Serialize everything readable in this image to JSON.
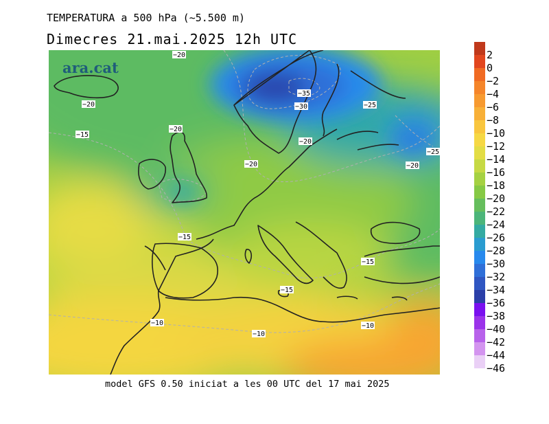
{
  "title": "TEMPERATURA a 500 hPa (~5.500 m)",
  "subtitle": "Dimecres  21.mai.2025 12h UTC",
  "brand": "ara.cat",
  "footer": "model GFS 0.50 iniciat a les 00 UTC del 17 mai 2025",
  "legend": {
    "labels": [
      "2",
      "0",
      "−2",
      "−4",
      "−6",
      "−8",
      "−10",
      "−12",
      "−14",
      "−16",
      "−18",
      "−20",
      "−22",
      "−24",
      "−26",
      "−28",
      "−30",
      "−32",
      "−34",
      "−36",
      "−38",
      "−40",
      "−42",
      "−44",
      "−46"
    ],
    "colors": [
      "#c0391b",
      "#e2461e",
      "#f06a22",
      "#f5852a",
      "#f79a30",
      "#f8b038",
      "#f9c63e",
      "#f6d844",
      "#e3dd45",
      "#c6d944",
      "#a5d142",
      "#86c945",
      "#66be5d",
      "#4cb57a",
      "#34aaa2",
      "#2a9cd0",
      "#2789ed",
      "#2f6fd8",
      "#2f56c2",
      "#2b3fa8",
      "#7a10ef",
      "#9b33ea",
      "#b862eb",
      "#d394ef",
      "#ead0f6"
    ]
  },
  "isotherm_labels": [
    {
      "text": "−20"
    },
    {
      "text": "−20"
    },
    {
      "text": "−15"
    },
    {
      "text": "−20"
    },
    {
      "text": "−35"
    },
    {
      "text": "−30"
    },
    {
      "text": "−25"
    },
    {
      "text": "−20"
    },
    {
      "text": "−25"
    },
    {
      "text": "−20"
    },
    {
      "text": "−20"
    },
    {
      "text": "−15"
    },
    {
      "text": "−15"
    },
    {
      "text": "−15"
    },
    {
      "text": "−10"
    },
    {
      "text": "−10"
    },
    {
      "text": "−10"
    }
  ]
}
